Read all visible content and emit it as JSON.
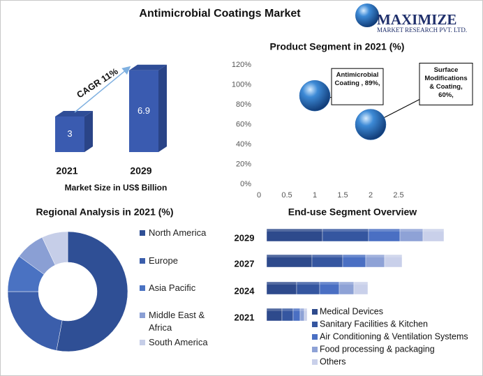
{
  "logo": {
    "name": "MAXIMIZE",
    "tagline": "MARKET RESEARCH PVT. LTD."
  },
  "chart_data": [
    {
      "type": "bar",
      "title": "Antimicrobial Coatings Market",
      "categories": [
        "2021",
        "2029"
      ],
      "values": [
        3,
        6.9
      ],
      "xlabel": "Market Size in US$ Billion",
      "annotation": "CAGR 11%",
      "color": "#3a5bb0"
    },
    {
      "type": "scatter",
      "title": "Product Segment in 2021 (%)",
      "x": [
        1,
        2
      ],
      "values": [
        89,
        60
      ],
      "value_labels": [
        "Antimicrobial Coating , 89%,",
        "Surface Modifications & Coating, 60%,"
      ],
      "xlim": [
        0,
        2.5
      ],
      "xticks": [
        0,
        0.5,
        1,
        1.5,
        2,
        2.5
      ],
      "ylim": [
        0,
        120
      ],
      "yticks": [
        {
          "value": 0,
          "label": "0%"
        },
        {
          "value": 20,
          "label": "20%"
        },
        {
          "value": 40,
          "label": "40%"
        },
        {
          "value": 60,
          "label": "60%"
        },
        {
          "value": 80,
          "label": "80%"
        },
        {
          "value": 100,
          "label": "100%"
        },
        {
          "value": 120,
          "label": "120%"
        }
      ],
      "color": "#2f6fb8"
    },
    {
      "type": "donut",
      "title": "Regional Analysis in 2021 (%)",
      "categories": [
        "North America",
        "Europe",
        "Asia Pacific",
        "Middle East & Africa",
        "South America"
      ],
      "values": [
        53,
        22,
        10,
        8,
        7
      ],
      "colors": [
        "#2f4f95",
        "#3b5eab",
        "#4a72c2",
        "#8a9fd4",
        "#c6cee8"
      ]
    },
    {
      "type": "bar",
      "orientation": "horizontal",
      "stacked": true,
      "title": "End-use Segment Overview",
      "categories": [
        "2029",
        "2027",
        "2024",
        "2021"
      ],
      "series": [
        {
          "name": "Medical Devices",
          "color": "#2e4a8c",
          "values": [
            80,
            65,
            43,
            22
          ]
        },
        {
          "name": "Sanitary Facilities & Kitchen",
          "color": "#3556a0",
          "values": [
            66,
            44,
            33,
            16
          ]
        },
        {
          "name": "Air Conditioning & Ventilation Systems",
          "color": "#4a6fc3",
          "values": [
            45,
            33,
            28,
            10
          ]
        },
        {
          "name": "Food processing & packaging",
          "color": "#8ea2d6",
          "values": [
            33,
            27,
            21,
            6
          ]
        },
        {
          "name": "Others",
          "color": "#c9d0ea",
          "values": [
            30,
            25,
            20,
            4
          ]
        }
      ]
    }
  ]
}
